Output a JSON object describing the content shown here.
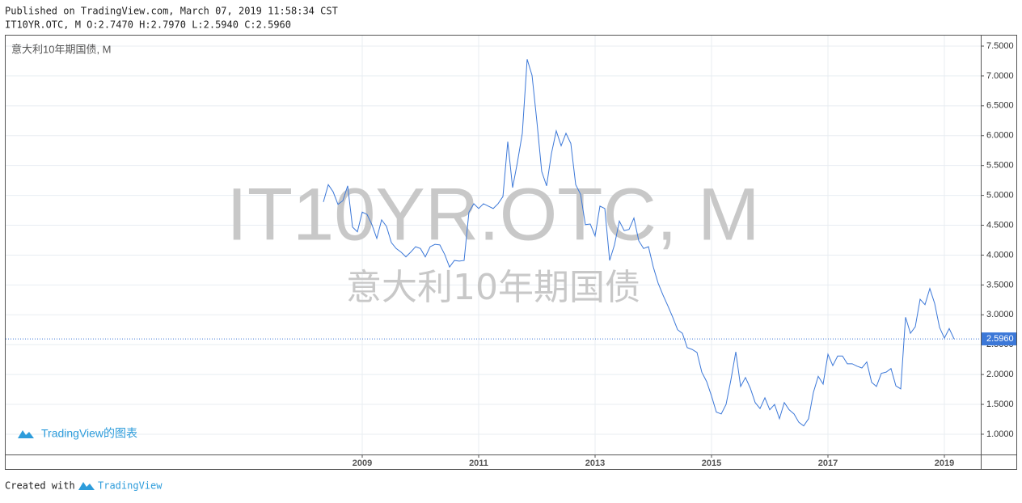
{
  "header": {
    "published": "Published on TradingView.com, March 07, 2019 11:58:34 CST",
    "symbol_line": "IT10YR.OTC, M O:2.7470 H:2.7970 L:2.5940 C:2.5960"
  },
  "footer": {
    "created_with": "Created with",
    "brand": "TradingView"
  },
  "chart_data": {
    "type": "line",
    "legend_title": "意大利10年期国债, M",
    "watermark": "IT10YR.OTC, M",
    "watermark_subtitle": "意大利10年期国债",
    "logo_text": "TradingView的图表",
    "grid": true,
    "xlim": [
      2002.875,
      2019.625
    ],
    "xticks": [
      2009,
      2011,
      2013,
      2015,
      2017,
      2019
    ],
    "ylim": [
      0.661,
      7.676
    ],
    "yticks": [
      {
        "value": 1,
        "label": "1.0000"
      },
      {
        "value": 1.5,
        "label": "1.5000"
      },
      {
        "value": 2,
        "label": "2.0000"
      },
      {
        "value": 2.5,
        "label": "2.5000"
      },
      {
        "value": 3,
        "label": "3.0000"
      },
      {
        "value": 3.5,
        "label": "3.5000"
      },
      {
        "value": 4,
        "label": "4.0000"
      },
      {
        "value": 4.5,
        "label": "4.5000"
      },
      {
        "value": 5,
        "label": "5.0000"
      },
      {
        "value": 5.5,
        "label": "5.5000"
      },
      {
        "value": 6,
        "label": "6.0000"
      },
      {
        "value": 6.5,
        "label": "6.5000"
      },
      {
        "value": 7,
        "label": "7.0000"
      },
      {
        "value": 7.5,
        "label": "7.5000"
      }
    ],
    "last_value": {
      "value": 2.596,
      "label": "2.5960"
    },
    "last_color": "#3c78d8",
    "x": [
      2008.333,
      2008.417,
      2008.5,
      2008.583,
      2008.667,
      2008.75,
      2008.833,
      2008.917,
      2009.0,
      2009.083,
      2009.167,
      2009.25,
      2009.333,
      2009.417,
      2009.5,
      2009.583,
      2009.667,
      2009.75,
      2009.833,
      2009.917,
      2010.0,
      2010.083,
      2010.167,
      2010.25,
      2010.333,
      2010.417,
      2010.5,
      2010.583,
      2010.667,
      2010.75,
      2010.833,
      2010.917,
      2011.0,
      2011.083,
      2011.167,
      2011.25,
      2011.333,
      2011.417,
      2011.5,
      2011.583,
      2011.667,
      2011.75,
      2011.833,
      2011.917,
      2012.0,
      2012.083,
      2012.167,
      2012.25,
      2012.333,
      2012.417,
      2012.5,
      2012.583,
      2012.667,
      2012.75,
      2012.833,
      2012.917,
      2013.0,
      2013.083,
      2013.167,
      2013.25,
      2013.333,
      2013.417,
      2013.5,
      2013.583,
      2013.667,
      2013.75,
      2013.833,
      2013.917,
      2014.0,
      2014.083,
      2014.167,
      2014.25,
      2014.333,
      2014.417,
      2014.5,
      2014.583,
      2014.667,
      2014.75,
      2014.833,
      2014.917,
      2015.0,
      2015.083,
      2015.167,
      2015.25,
      2015.333,
      2015.417,
      2015.5,
      2015.583,
      2015.667,
      2015.75,
      2015.833,
      2015.917,
      2016.0,
      2016.083,
      2016.167,
      2016.25,
      2016.333,
      2016.417,
      2016.5,
      2016.583,
      2016.667,
      2016.75,
      2016.833,
      2016.917,
      2017.0,
      2017.083,
      2017.167,
      2017.25,
      2017.333,
      2017.417,
      2017.5,
      2017.583,
      2017.667,
      2017.75,
      2017.833,
      2017.917,
      2018.0,
      2018.083,
      2018.167,
      2018.25,
      2018.333,
      2018.417,
      2018.5,
      2018.583,
      2018.667,
      2018.75,
      2018.833,
      2018.917,
      2019.0,
      2019.083,
      2019.167
    ],
    "series": [
      {
        "name": "IT10YR.OTC",
        "color": "#3c78d8",
        "values": [
          4.89,
          5.18,
          5.06,
          4.85,
          4.91,
          5.16,
          4.47,
          4.39,
          4.72,
          4.68,
          4.51,
          4.28,
          4.59,
          4.48,
          4.21,
          4.11,
          4.05,
          3.97,
          4.05,
          4.14,
          4.11,
          3.97,
          4.14,
          4.18,
          4.17,
          4.01,
          3.8,
          3.91,
          3.9,
          3.91,
          4.72,
          4.86,
          4.78,
          4.86,
          4.82,
          4.78,
          4.86,
          4.98,
          5.9,
          5.13,
          5.56,
          6.04,
          7.28,
          7.01,
          6.24,
          5.4,
          5.16,
          5.7,
          6.08,
          5.83,
          6.04,
          5.87,
          5.18,
          5.02,
          4.51,
          4.52,
          4.32,
          4.82,
          4.78,
          3.91,
          4.17,
          4.57,
          4.41,
          4.43,
          4.62,
          4.24,
          4.11,
          4.14,
          3.8,
          3.53,
          3.33,
          3.15,
          2.96,
          2.75,
          2.69,
          2.45,
          2.42,
          2.37,
          2.04,
          1.88,
          1.64,
          1.37,
          1.34,
          1.5,
          1.91,
          2.38,
          1.8,
          1.95,
          1.77,
          1.53,
          1.43,
          1.61,
          1.41,
          1.5,
          1.26,
          1.53,
          1.41,
          1.34,
          1.2,
          1.14,
          1.26,
          1.7,
          1.97,
          1.84,
          2.34,
          2.15,
          2.31,
          2.31,
          2.18,
          2.18,
          2.14,
          2.11,
          2.21,
          1.87,
          1.8,
          2.02,
          2.04,
          2.1,
          1.81,
          1.76,
          2.96,
          2.69,
          2.8,
          3.26,
          3.17,
          3.44,
          3.19,
          2.79,
          2.61,
          2.77,
          2.596
        ]
      }
    ]
  }
}
